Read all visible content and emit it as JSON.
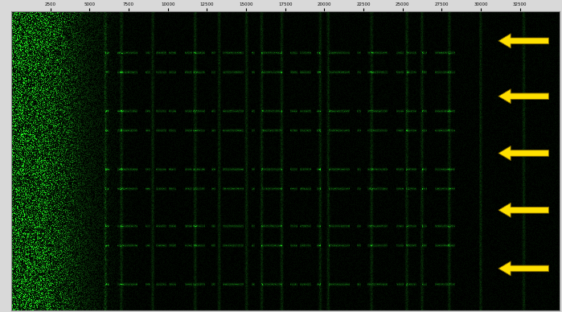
{
  "chart_data": {
    "type": "spectrogram",
    "xlim": [
      0,
      35000
    ],
    "xticks": [
      2500,
      5000,
      7500,
      10000,
      12500,
      15000,
      17500,
      20000,
      22500,
      25000,
      27500,
      30000,
      32500
    ],
    "ylim": [
      0,
      10
    ],
    "tick_labels": "x",
    "color": "#22ff22",
    "noise_edge": 5000,
    "carriers": [
      6000,
      7000,
      9000,
      11750,
      13250,
      15000,
      16000,
      17250,
      19750,
      20250,
      23000,
      25250,
      26250,
      28000,
      30000,
      32750
    ],
    "bursts": [
      1.4,
      2.05,
      3.35,
      4.0,
      5.3,
      5.95,
      7.2,
      7.85,
      9.15
    ],
    "burst_band": [
      6000,
      28500
    ],
    "arrows": {
      "times": [
        1.0,
        2.85,
        4.75,
        6.65,
        8.6
      ],
      "color": "#ffe000"
    }
  }
}
